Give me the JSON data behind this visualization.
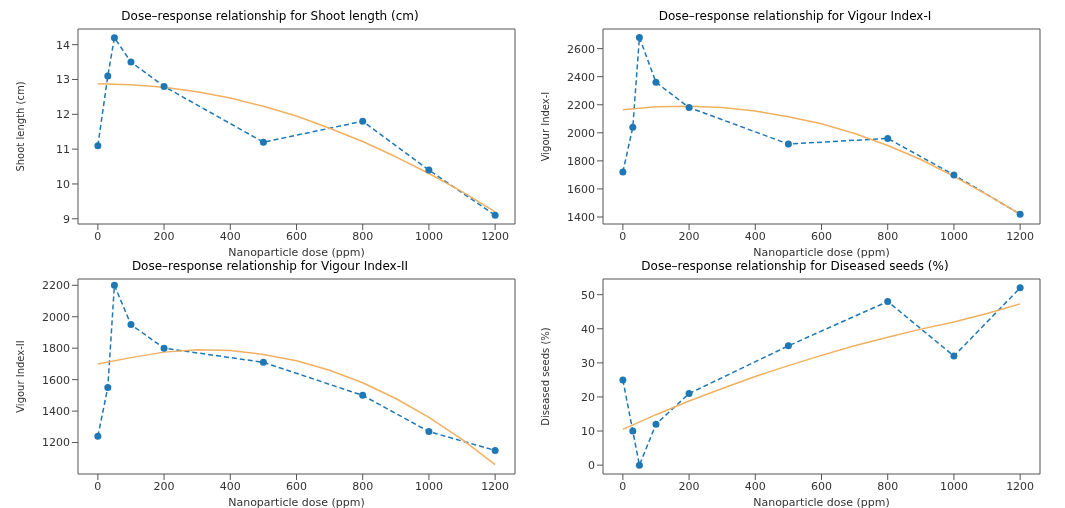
{
  "chart_data": [
    {
      "type": "line",
      "title": "Dose–response relationship for Shoot length (cm)",
      "xlabel": "Nanoparticle dose (ppm)",
      "ylabel": "Shoot length (cm)",
      "xlim": [
        -60,
        1260
      ],
      "xticks": [
        0,
        200,
        400,
        600,
        800,
        1000,
        1200
      ],
      "ylim": [
        8.85,
        14.45
      ],
      "yticks": [
        9,
        10,
        11,
        12,
        13,
        14
      ],
      "grid": false,
      "series": [
        {
          "type": "line",
          "color": "#1f77b4",
          "marker": "circle",
          "line_style": "dashed",
          "x": [
            0,
            30,
            50,
            100,
            200,
            500,
            800,
            1000,
            1200
          ],
          "values": [
            11.1,
            13.1,
            14.2,
            13.5,
            12.8,
            11.2,
            11.8,
            10.4,
            9.1
          ]
        },
        {
          "type": "line",
          "color": "#f0b060",
          "marker": "none",
          "line_style": "solid",
          "x": [
            0,
            100,
            200,
            300,
            400,
            500,
            600,
            700,
            800,
            900,
            1000,
            1100,
            1200
          ],
          "values": [
            12.88,
            12.85,
            12.78,
            12.65,
            12.47,
            12.23,
            11.95,
            11.6,
            11.22,
            10.78,
            10.3,
            9.78,
            9.2
          ]
        }
      ]
    },
    {
      "type": "line",
      "title": "Dose–response relationship for Vigour Index-I",
      "xlabel": "Nanoparticle dose (ppm)",
      "ylabel": "Vigour Index-I",
      "xlim": [
        -60,
        1260
      ],
      "xticks": [
        0,
        200,
        400,
        600,
        800,
        1000,
        1200
      ],
      "ylim": [
        1350,
        2740
      ],
      "yticks": [
        1400,
        1600,
        1800,
        2000,
        2200,
        2400,
        2600
      ],
      "grid": false,
      "series": [
        {
          "type": "line",
          "color": "#1f77b4",
          "marker": "circle",
          "line_style": "dashed",
          "x": [
            0,
            30,
            50,
            100,
            200,
            500,
            800,
            1000,
            1200
          ],
          "values": [
            1720,
            2040,
            2680,
            2360,
            2180,
            1920,
            1960,
            1700,
            1420
          ]
        },
        {
          "type": "line",
          "color": "#f0b060",
          "marker": "none",
          "line_style": "solid",
          "x": [
            0,
            100,
            200,
            300,
            400,
            500,
            600,
            700,
            800,
            900,
            1000,
            1100,
            1200
          ],
          "values": [
            2165,
            2185,
            2190,
            2180,
            2155,
            2115,
            2065,
            1995,
            1910,
            1810,
            1690,
            1560,
            1420
          ]
        }
      ]
    },
    {
      "type": "line",
      "title": "Dose–response relationship for Vigour Index-II",
      "xlabel": "Nanoparticle dose (ppm)",
      "ylabel": "Vigour Index-II",
      "xlim": [
        -60,
        1260
      ],
      "xticks": [
        0,
        200,
        400,
        600,
        800,
        1000,
        1200
      ],
      "ylim": [
        1000,
        2240
      ],
      "yticks": [
        1200,
        1400,
        1600,
        1800,
        2000,
        2200
      ],
      "grid": false,
      "series": [
        {
          "type": "line",
          "color": "#1f77b4",
          "marker": "circle",
          "line_style": "dashed",
          "x": [
            0,
            30,
            50,
            100,
            200,
            500,
            800,
            1000,
            1200
          ],
          "values": [
            1240,
            1550,
            2200,
            1950,
            1800,
            1710,
            1500,
            1270,
            1150
          ]
        },
        {
          "type": "line",
          "color": "#f0b060",
          "marker": "none",
          "line_style": "solid",
          "x": [
            0,
            100,
            200,
            300,
            400,
            500,
            600,
            700,
            800,
            900,
            1000,
            1100,
            1200
          ],
          "values": [
            1700,
            1740,
            1775,
            1790,
            1785,
            1760,
            1720,
            1660,
            1580,
            1480,
            1360,
            1220,
            1060
          ]
        }
      ]
    },
    {
      "type": "line",
      "title": "Dose–response relationship for Diseased seeds (%)",
      "xlabel": "Nanoparticle dose (ppm)",
      "ylabel": "Diseased seeds (%)",
      "xlim": [
        -60,
        1260
      ],
      "xticks": [
        0,
        200,
        400,
        600,
        800,
        1000,
        1200
      ],
      "ylim": [
        -2.6,
        54.6
      ],
      "yticks": [
        0,
        10,
        20,
        30,
        40,
        50
      ],
      "grid": false,
      "series": [
        {
          "type": "line",
          "color": "#1f77b4",
          "marker": "circle",
          "line_style": "dashed",
          "x": [
            0,
            30,
            50,
            100,
            200,
            500,
            800,
            1000,
            1200
          ],
          "values": [
            25,
            10,
            0,
            12,
            21,
            35,
            48,
            32,
            52
          ]
        },
        {
          "type": "line",
          "color": "#f0b060",
          "marker": "none",
          "line_style": "solid",
          "x": [
            0,
            100,
            200,
            300,
            400,
            500,
            600,
            700,
            800,
            900,
            1000,
            1100,
            1200
          ],
          "values": [
            10.5,
            14.8,
            18.8,
            22.5,
            26,
            29.2,
            32.2,
            35,
            37.5,
            39.9,
            42,
            44.5,
            47.3
          ]
        }
      ]
    }
  ]
}
